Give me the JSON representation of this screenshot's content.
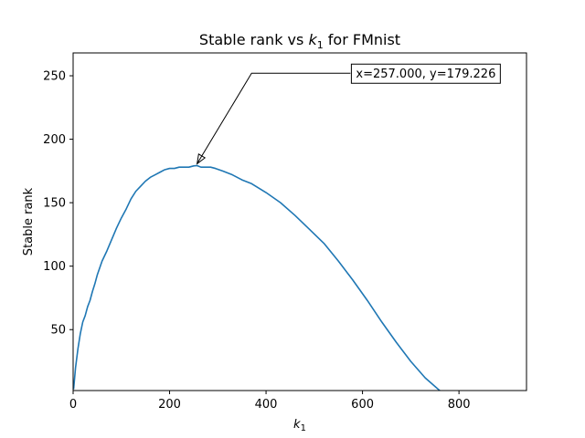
{
  "chart_data": {
    "type": "line",
    "title_prefix": "Stable rank vs ",
    "title_var": "k",
    "title_sub": "1",
    "title_suffix": " for FMnist",
    "xlabel_var": "k",
    "xlabel_sub": "1",
    "ylabel": "Stable rank",
    "xlim": [
      0,
      940
    ],
    "ylim": [
      2,
      268
    ],
    "xticks": [
      0,
      200,
      400,
      600,
      800
    ],
    "yticks": [
      50,
      100,
      150,
      200,
      250
    ],
    "grid": false,
    "line_color": "#1f77b4",
    "series": [
      {
        "x": [
          1,
          5,
          10,
          15,
          20,
          25,
          30,
          35,
          40,
          45,
          50,
          60,
          70,
          80,
          90,
          100,
          110,
          120,
          130,
          140,
          150,
          160,
          170,
          180,
          190,
          200,
          210,
          220,
          230,
          240,
          250,
          257,
          265,
          275,
          285,
          295,
          310,
          330,
          350,
          370,
          400,
          430,
          460,
          490,
          520,
          550,
          580,
          610,
          640,
          670,
          700,
          730,
          760,
          775,
          790
        ],
        "y": [
          3,
          20,
          35,
          47,
          56,
          61,
          68,
          73,
          80,
          86,
          93,
          104,
          112,
          121,
          130,
          138,
          145,
          153,
          159,
          163,
          167,
          170,
          172,
          174,
          176,
          177,
          177,
          178,
          178,
          178,
          179,
          179.226,
          178,
          178,
          178,
          177,
          175,
          172,
          168,
          165,
          158,
          150,
          140,
          129,
          118,
          104,
          89,
          73,
          56,
          40,
          25,
          12,
          2,
          -3,
          -8
        ]
      }
    ],
    "annotation": {
      "text": "x=257.000, y=179.226",
      "point": [
        257,
        179.226
      ],
      "text_anchor_point": [
        575,
        252
      ],
      "elbow_point": [
        370,
        252
      ]
    }
  }
}
